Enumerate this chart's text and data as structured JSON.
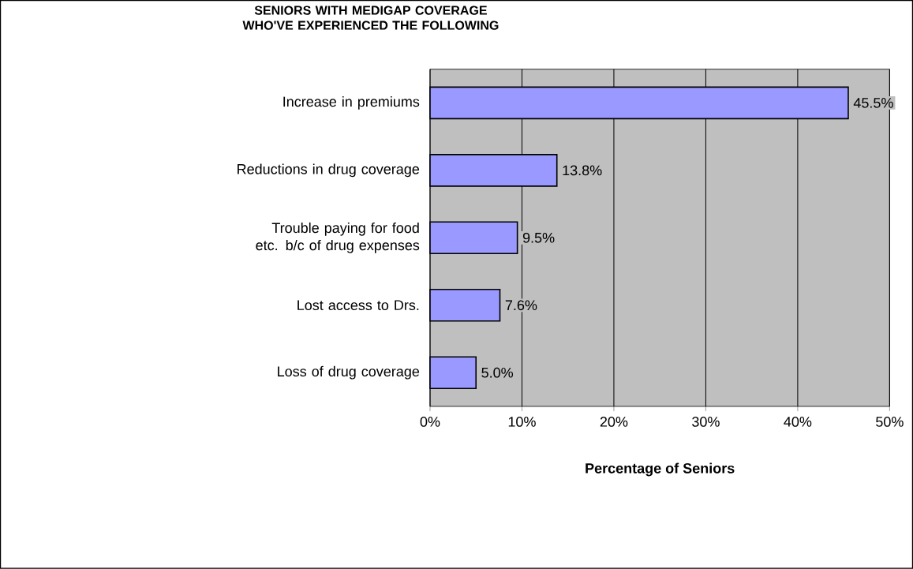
{
  "chart_data": {
    "type": "bar",
    "orientation": "horizontal",
    "title": "SENIORS WITH MEDIGAP COVERAGE WHO'VE EXPERIENCED THE FOLLOWING",
    "xlabel": "Percentage of Seniors",
    "categories": [
      "Increase in premiums",
      "Reductions in drug coverage",
      "Trouble paying for food etc. b/c of drug expenses",
      "Lost access to Drs.",
      "Loss of drug coverage"
    ],
    "values": [
      45.5,
      13.8,
      9.5,
      7.6,
      5.0
    ],
    "value_labels": [
      "45.5%",
      "13.8%",
      "9.5%",
      "7.6%",
      "5.0%"
    ],
    "color": "#9999ff",
    "xlim": [
      0,
      50
    ],
    "xticks": [
      {
        "value": 0,
        "label": "0%"
      },
      {
        "value": 10,
        "label": "10%"
      },
      {
        "value": 20,
        "label": "20%"
      },
      {
        "value": 30,
        "label": "30%"
      },
      {
        "value": 40,
        "label": "40%"
      },
      {
        "value": 50,
        "label": "50%"
      }
    ],
    "grid": "x"
  }
}
